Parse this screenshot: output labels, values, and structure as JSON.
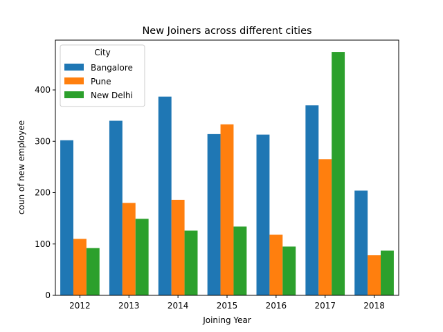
{
  "chart_data": {
    "type": "bar",
    "title": "New Joiners across different cities",
    "xlabel": "Joining Year",
    "ylabel": "coun of new employee",
    "categories": [
      "2012",
      "2013",
      "2014",
      "2015",
      "2016",
      "2017",
      "2018"
    ],
    "series": [
      {
        "name": "Bangalore",
        "color": "#1f77b4",
        "values": [
          302,
          340,
          387,
          314,
          313,
          370,
          204
        ]
      },
      {
        "name": "Pune",
        "color": "#ff7f0e",
        "values": [
          110,
          180,
          186,
          333,
          118,
          265,
          78
        ]
      },
      {
        "name": "New Delhi",
        "color": "#2ca02c",
        "values": [
          92,
          149,
          126,
          134,
          95,
          474,
          87
        ]
      }
    ],
    "ylim": [
      0,
      497
    ],
    "yticks": [
      0,
      100,
      200,
      300,
      400
    ],
    "grid": false,
    "legend": {
      "title": "City",
      "placement": "top-left"
    }
  }
}
